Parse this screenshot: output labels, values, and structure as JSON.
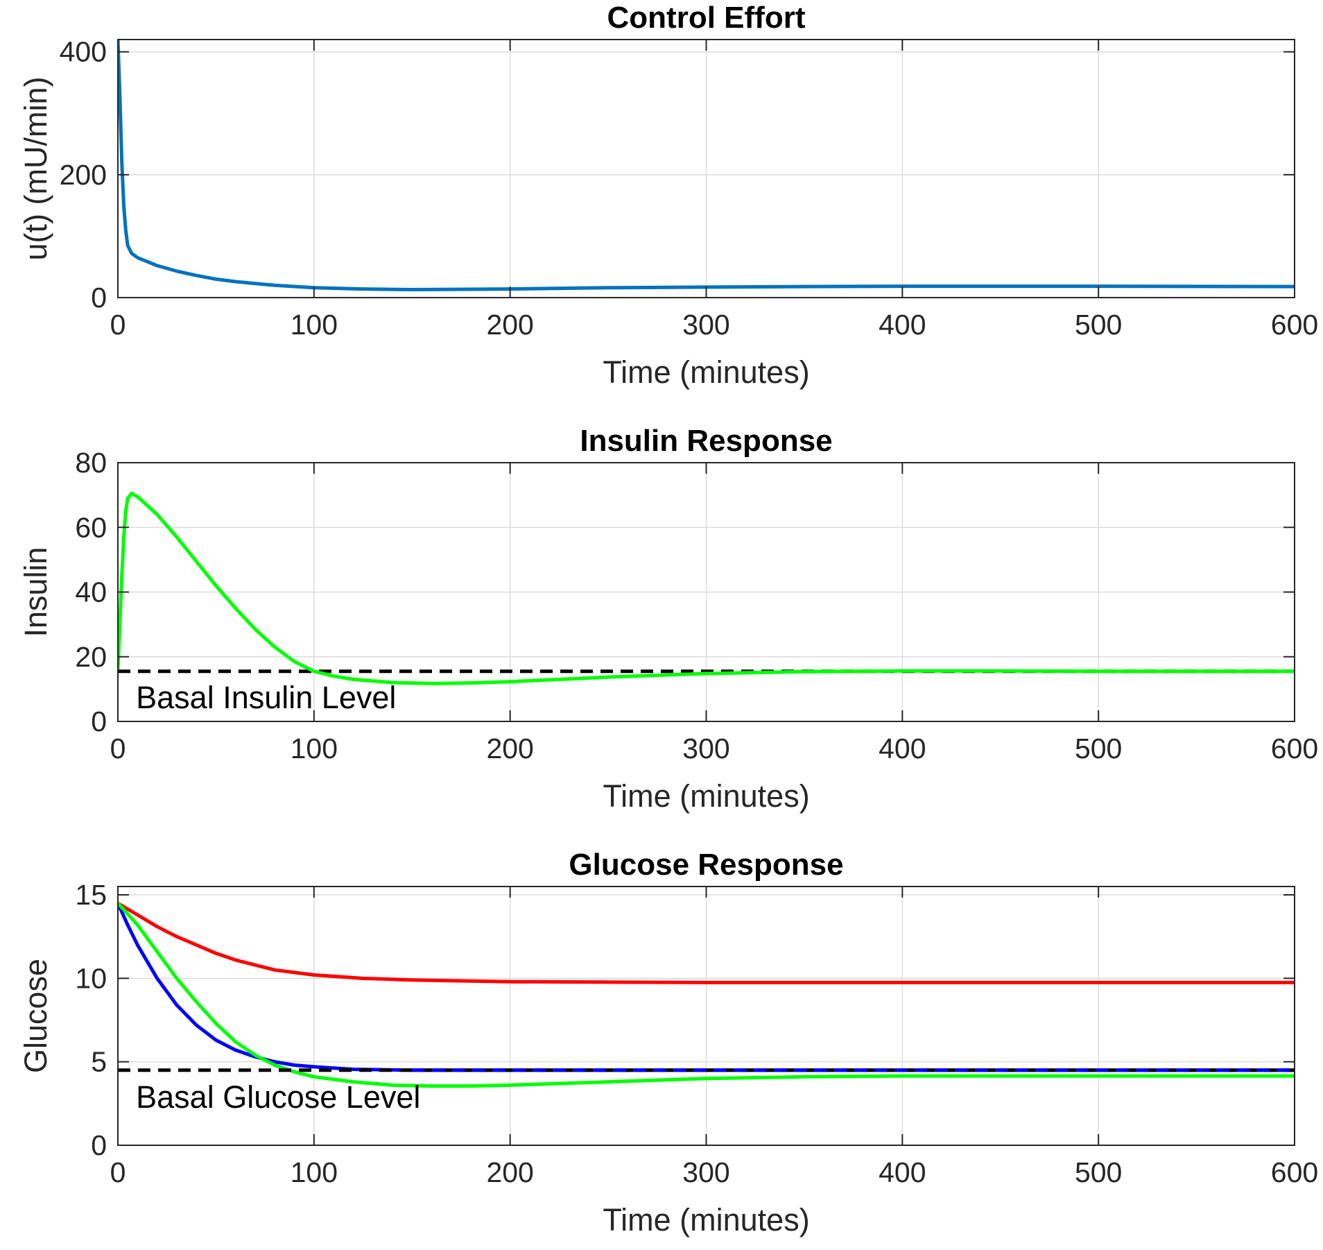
{
  "chart_data": [
    {
      "type": "line",
      "title": "Control Effort",
      "xlabel": "Time (minutes)",
      "ylabel": "u(t) (mU/min)",
      "xlim": [
        0,
        600
      ],
      "ylim": [
        0,
        420
      ],
      "xticks": [
        0,
        100,
        200,
        300,
        400,
        500,
        600
      ],
      "yticks": [
        0,
        200,
        400
      ],
      "grid": true,
      "series": [
        {
          "color": "#0072BD",
          "dashed": false,
          "points": [
            [
              0,
              420
            ],
            [
              1,
              330
            ],
            [
              2,
              220
            ],
            [
              3,
              150
            ],
            [
              4,
              110
            ],
            [
              5,
              85
            ],
            [
              7,
              72
            ],
            [
              10,
              65
            ],
            [
              20,
              52
            ],
            [
              30,
              43
            ],
            [
              40,
              36
            ],
            [
              50,
              30
            ],
            [
              60,
              26
            ],
            [
              80,
              20
            ],
            [
              100,
              16
            ],
            [
              125,
              14
            ],
            [
              150,
              13
            ],
            [
              200,
              14
            ],
            [
              250,
              16
            ],
            [
              300,
              17
            ],
            [
              350,
              18
            ],
            [
              400,
              18.5
            ],
            [
              500,
              18.5
            ],
            [
              600,
              18
            ]
          ]
        }
      ],
      "annotations": []
    },
    {
      "type": "line",
      "title": "Insulin Response",
      "xlabel": "Time (minutes)",
      "ylabel": "Insulin",
      "xlim": [
        0,
        600
      ],
      "ylim": [
        0,
        80
      ],
      "xticks": [
        0,
        100,
        200,
        300,
        400,
        500,
        600
      ],
      "yticks": [
        0,
        20,
        40,
        60,
        80
      ],
      "grid": true,
      "series": [
        {
          "color": "#000000",
          "dashed": true,
          "points": [
            [
              0,
              15.5
            ],
            [
              600,
              15.5
            ]
          ]
        },
        {
          "color": "#00FF00",
          "dashed": false,
          "points": [
            [
              0,
              16
            ],
            [
              1,
              30
            ],
            [
              2,
              45
            ],
            [
              3,
              57
            ],
            [
              4,
              65
            ],
            [
              5,
              69
            ],
            [
              7,
              70.5
            ],
            [
              10,
              69.5
            ],
            [
              20,
              64
            ],
            [
              30,
              57
            ],
            [
              40,
              49.5
            ],
            [
              50,
              42
            ],
            [
              60,
              35
            ],
            [
              70,
              28.5
            ],
            [
              80,
              23
            ],
            [
              90,
              18.5
            ],
            [
              100,
              15.5
            ],
            [
              110,
              14
            ],
            [
              120,
              13
            ],
            [
              140,
              12
            ],
            [
              160,
              11.7
            ],
            [
              180,
              11.9
            ],
            [
              200,
              12.3
            ],
            [
              250,
              13.7
            ],
            [
              300,
              14.8
            ],
            [
              350,
              15.4
            ],
            [
              400,
              15.6
            ],
            [
              450,
              15.6
            ],
            [
              500,
              15.5
            ],
            [
              600,
              15.5
            ]
          ]
        }
      ],
      "annotations": [
        {
          "text": "Basal Insulin Level",
          "x": 5,
          "y": 7.5
        }
      ]
    },
    {
      "type": "line",
      "title": "Glucose Response",
      "xlabel": "Time (minutes)",
      "ylabel": "Glucose",
      "xlim": [
        0,
        600
      ],
      "ylim": [
        0,
        15.5
      ],
      "xticks": [
        0,
        100,
        200,
        300,
        400,
        500,
        600
      ],
      "yticks": [
        0,
        5,
        10,
        15
      ],
      "grid": true,
      "series": [
        {
          "color": "#FF0000",
          "dashed": false,
          "points": [
            [
              0,
              14.5
            ],
            [
              10,
              13.8
            ],
            [
              20,
              13.1
            ],
            [
              30,
              12.5
            ],
            [
              40,
              12
            ],
            [
              50,
              11.5
            ],
            [
              60,
              11.1
            ],
            [
              80,
              10.5
            ],
            [
              100,
              10.2
            ],
            [
              125,
              10
            ],
            [
              150,
              9.9
            ],
            [
              200,
              9.8
            ],
            [
              300,
              9.75
            ],
            [
              400,
              9.75
            ],
            [
              600,
              9.75
            ]
          ]
        },
        {
          "color": "#0000FF",
          "dashed": false,
          "points": [
            [
              0,
              14.5
            ],
            [
              5,
              13.2
            ],
            [
              10,
              12
            ],
            [
              20,
              10
            ],
            [
              30,
              8.4
            ],
            [
              40,
              7.2
            ],
            [
              50,
              6.3
            ],
            [
              60,
              5.7
            ],
            [
              70,
              5.3
            ],
            [
              80,
              5
            ],
            [
              90,
              4.8
            ],
            [
              100,
              4.7
            ],
            [
              120,
              4.55
            ],
            [
              150,
              4.5
            ],
            [
              200,
              4.5
            ],
            [
              300,
              4.5
            ],
            [
              600,
              4.5
            ]
          ]
        },
        {
          "color": "#00FF00",
          "dashed": false,
          "points": [
            [
              0,
              14.5
            ],
            [
              10,
              13.2
            ],
            [
              20,
              11.6
            ],
            [
              30,
              10
            ],
            [
              40,
              8.6
            ],
            [
              50,
              7.3
            ],
            [
              60,
              6.2
            ],
            [
              70,
              5.4
            ],
            [
              80,
              4.8
            ],
            [
              90,
              4.4
            ],
            [
              100,
              4.1
            ],
            [
              120,
              3.8
            ],
            [
              140,
              3.6
            ],
            [
              160,
              3.55
            ],
            [
              180,
              3.55
            ],
            [
              200,
              3.6
            ],
            [
              250,
              3.8
            ],
            [
              300,
              4
            ],
            [
              350,
              4.1
            ],
            [
              400,
              4.15
            ],
            [
              500,
              4.15
            ],
            [
              600,
              4.15
            ]
          ]
        },
        {
          "color": "#000000",
          "dashed": true,
          "points": [
            [
              0,
              4.5
            ],
            [
              600,
              4.5
            ]
          ]
        },
        {
          "color": "#0000FF",
          "dashed": true,
          "points": [
            [
              150,
              4.5
            ],
            [
              600,
              4.5
            ]
          ]
        }
      ],
      "annotations": [
        {
          "text": "Basal Glucose Level",
          "x": 5,
          "y": 2.9
        }
      ]
    }
  ]
}
